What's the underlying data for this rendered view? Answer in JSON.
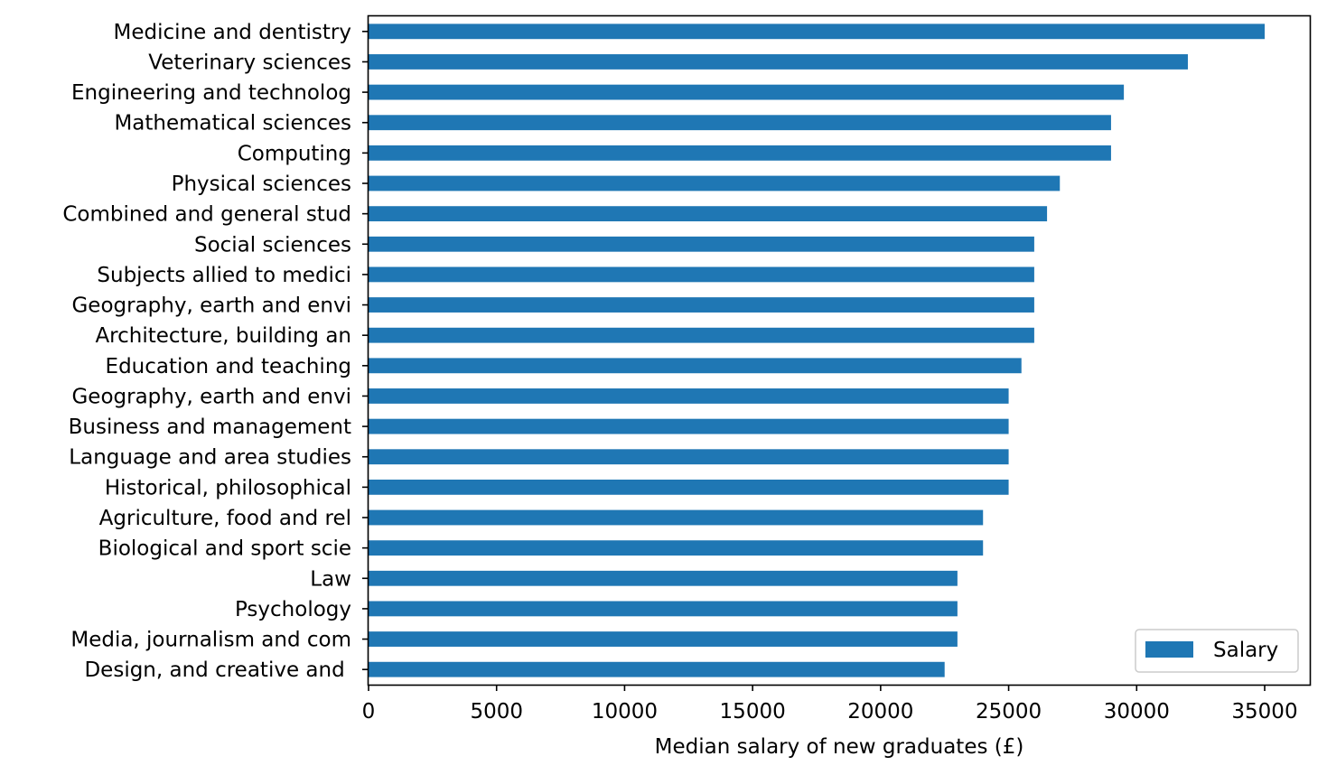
{
  "chart_data": {
    "type": "bar",
    "orientation": "horizontal",
    "categories": [
      "Medicine and dentistry",
      "Veterinary sciences",
      "Engineering and technolog",
      "Mathematical sciences",
      "Computing",
      "Physical sciences",
      "Combined and general stud",
      "Social sciences",
      "Subjects allied to medici",
      "Geography, earth and envi",
      "Architecture, building an",
      "Education and teaching",
      "Geography, earth and envi",
      "Business and management",
      "Language and area studies",
      "Historical, philosophical",
      "Agriculture, food and rel",
      "Biological and sport scie",
      "Law",
      "Psychology",
      "Media, journalism and com",
      "Design, and creative and "
    ],
    "series": [
      {
        "name": "Salary",
        "color": "#1f77b4",
        "values": [
          35000,
          32000,
          29500,
          29000,
          29000,
          27000,
          26500,
          26000,
          26000,
          26000,
          26000,
          25500,
          25000,
          25000,
          25000,
          25000,
          24000,
          24000,
          23000,
          23000,
          23000,
          22500
        ]
      }
    ],
    "xlabel": "Median salary of new graduates (£)",
    "ylabel": "",
    "xlim": [
      0,
      36750
    ],
    "xticks": [
      "0",
      "5000",
      "10000",
      "15000",
      "20000",
      "25000",
      "30000",
      "35000"
    ],
    "grid": false,
    "legend": {
      "position": "lower-right",
      "entries": [
        "Salary"
      ]
    }
  }
}
